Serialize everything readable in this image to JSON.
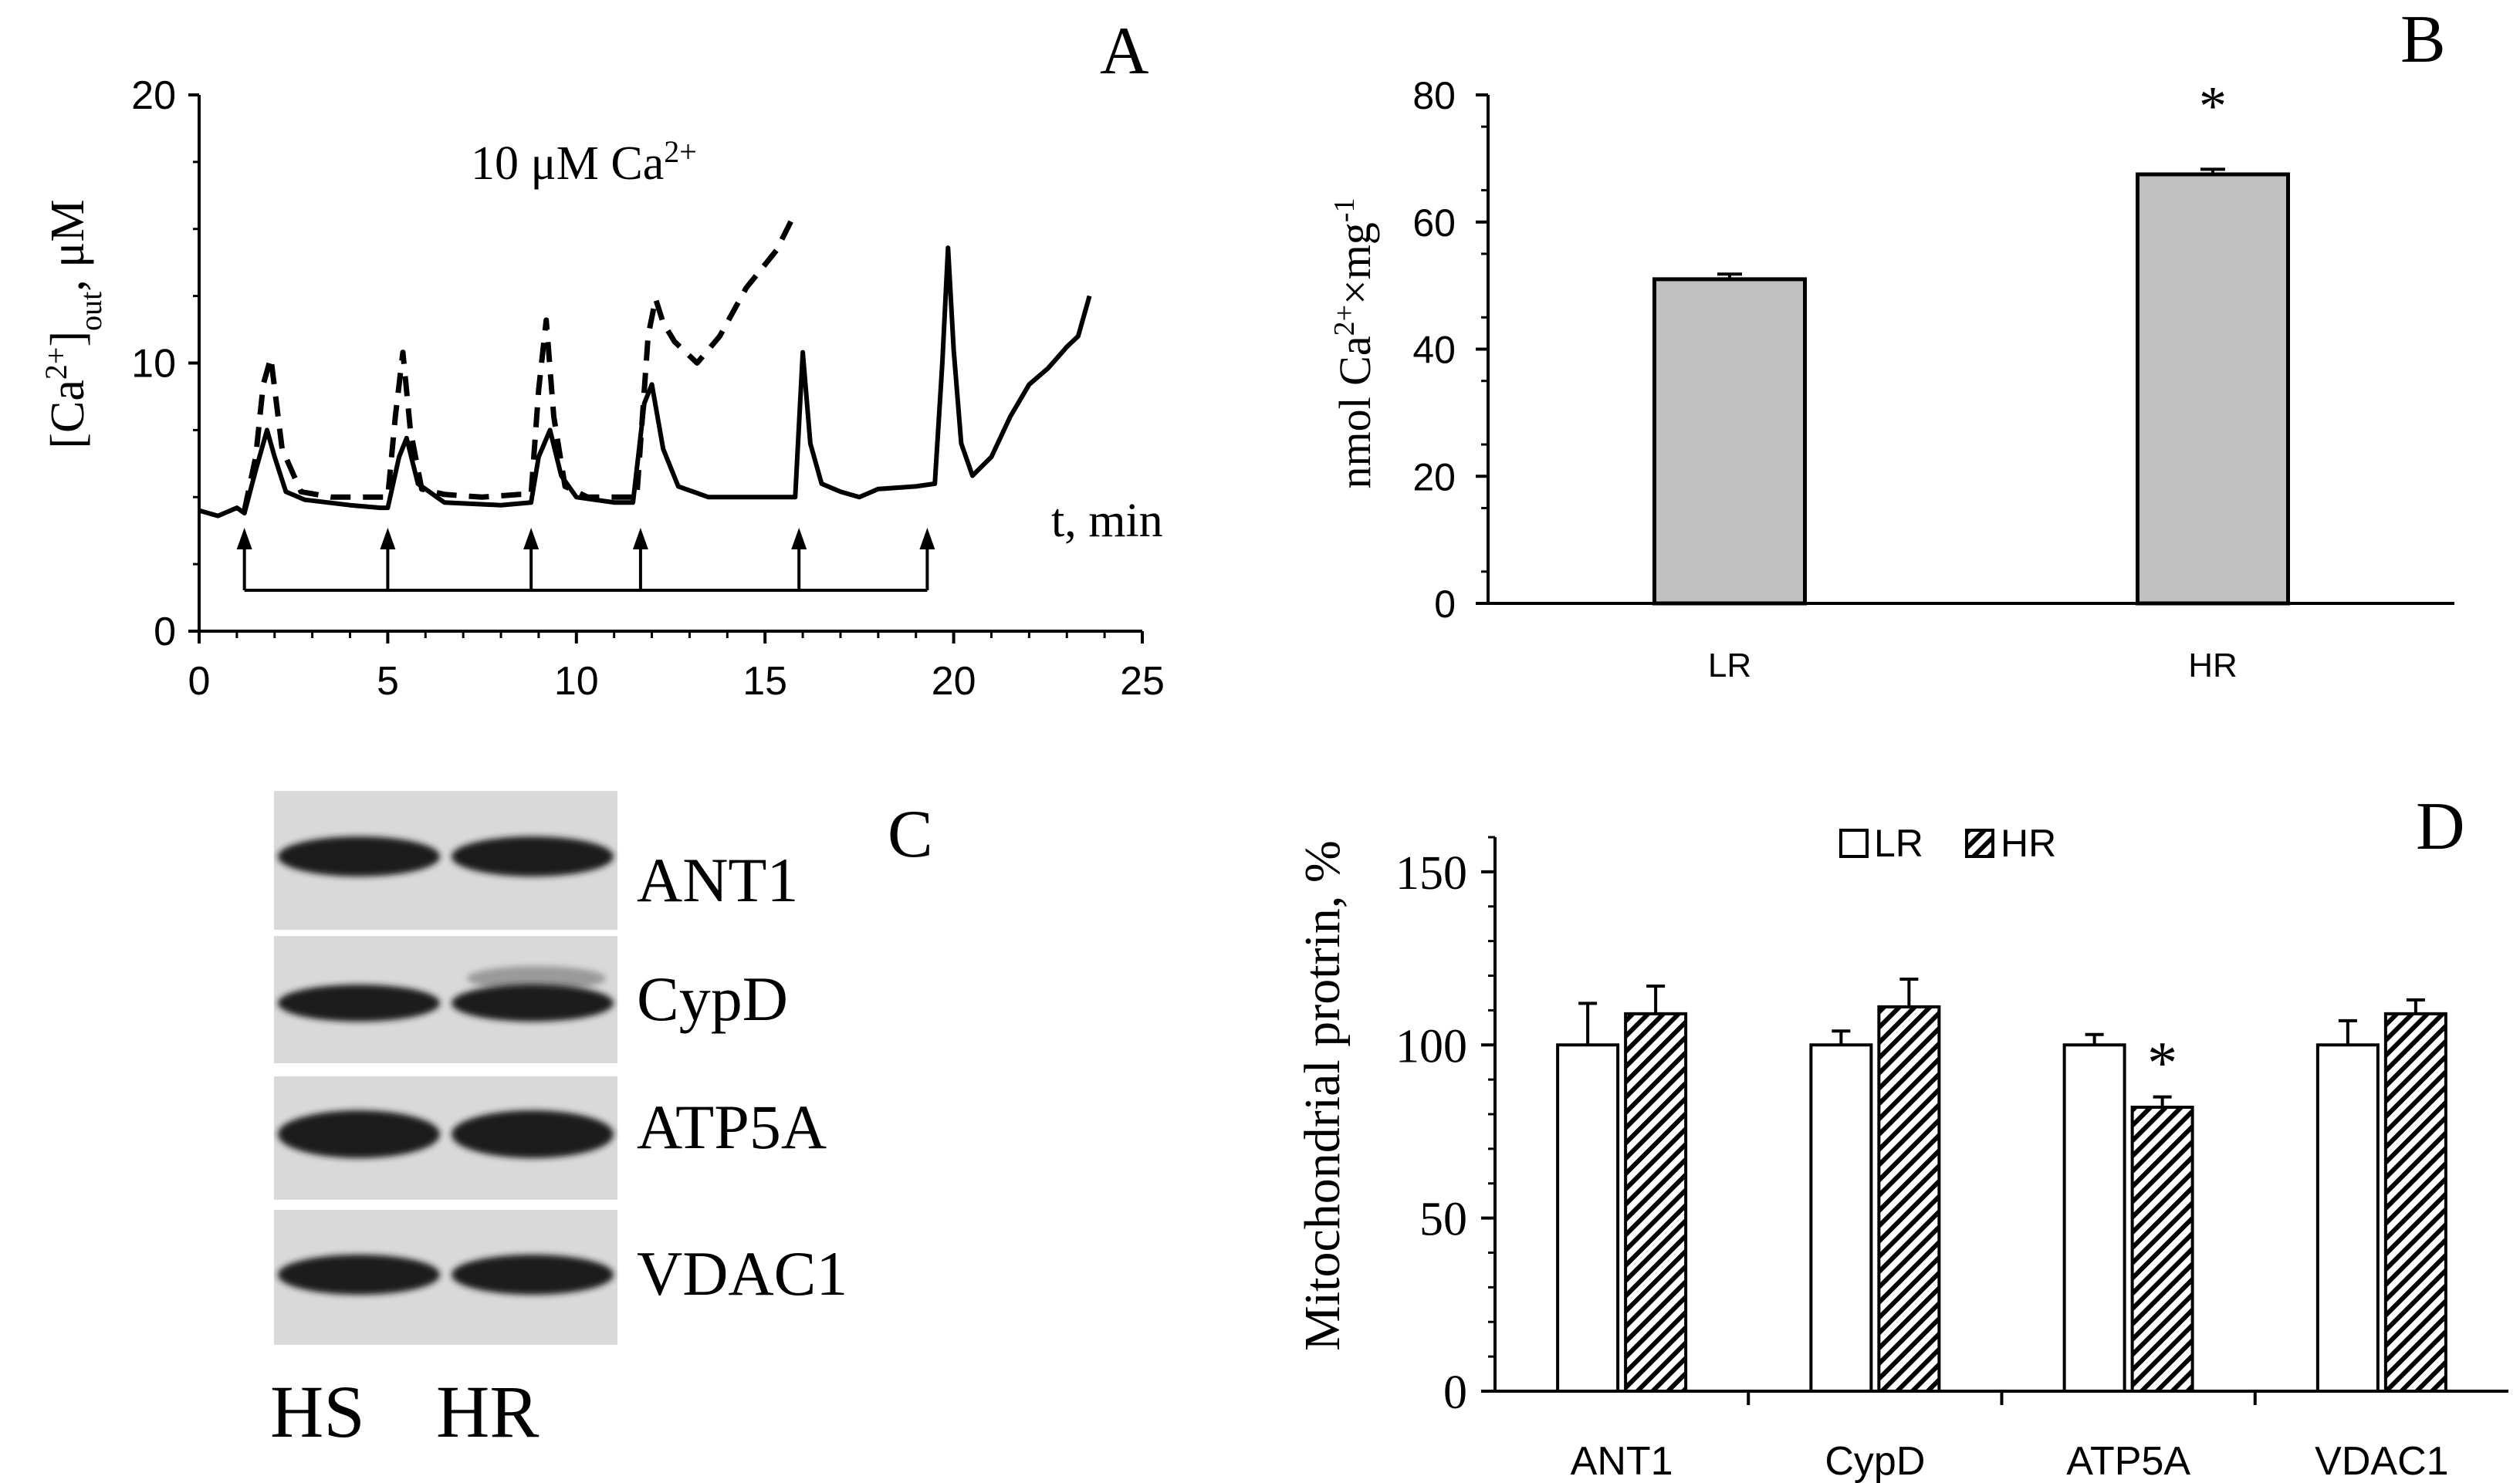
{
  "panels": {
    "A": {
      "letter": "A"
    },
    "B": {
      "letter": "B"
    },
    "C": {
      "letter": "C"
    },
    "D": {
      "letter": "D"
    }
  },
  "colors": {
    "bar_fill": "#c0c0c0",
    "axis": "#000000",
    "band": "#1a1a1a",
    "blot_bg": "#d9d9d9"
  },
  "chart_data": [
    {
      "id": "A",
      "type": "line",
      "ylabel_main": "[Ca",
      "ylabel_sup": "2+",
      "ylabel_close": "]",
      "ylabel_sub": "out",
      "ylabel_unit": ", μM",
      "xlabel": "t, min",
      "annotation_main": "10 μM Ca",
      "annotation_sup": "2+",
      "xlim": [
        0,
        25
      ],
      "ylim": [
        0,
        20
      ],
      "xticks": [
        0,
        5,
        10,
        15,
        20,
        25
      ],
      "yticks": [
        0,
        10,
        20
      ],
      "ca_additions_min": [
        1.2,
        5.0,
        8.8,
        11.7,
        15.9,
        19.3
      ],
      "series": [
        {
          "name": "solid",
          "style": "solid",
          "x": [
            0,
            0.5,
            1,
            1.2,
            1.5,
            1.8,
            2.0,
            2.3,
            2.8,
            4.0,
            4.8,
            5.0,
            5.3,
            5.5,
            5.8,
            6.5,
            8.0,
            8.8,
            9.0,
            9.3,
            9.6,
            10.0,
            11.0,
            11.5,
            11.8,
            12.0,
            12.3,
            12.7,
            13.5,
            15.0,
            15.8,
            16.0,
            16.2,
            16.5,
            17.0,
            17.5,
            18.0,
            19.0,
            19.5,
            19.7,
            19.85,
            20.0,
            20.2,
            20.5,
            21.0,
            21.5,
            22.0,
            22.5,
            23.0,
            23.3,
            23.6
          ],
          "y": [
            4.5,
            4.3,
            4.6,
            4.4,
            6.0,
            7.5,
            6.5,
            5.2,
            4.9,
            4.7,
            4.6,
            4.6,
            6.5,
            7.2,
            5.5,
            4.8,
            4.7,
            4.8,
            6.5,
            7.5,
            5.8,
            5.0,
            4.8,
            4.8,
            8.5,
            9.2,
            6.8,
            5.4,
            5.0,
            5.0,
            5.0,
            10.4,
            7.0,
            5.5,
            5.2,
            5.0,
            5.3,
            5.4,
            5.5,
            10.0,
            14.3,
            10.5,
            7.0,
            5.8,
            6.5,
            8.0,
            9.2,
            9.8,
            10.6,
            11.0,
            12.5
          ]
        },
        {
          "name": "dashed",
          "style": "dashed",
          "x": [
            1.2,
            1.5,
            1.7,
            1.9,
            2.2,
            2.7,
            3.5,
            4.5,
            5.0,
            5.2,
            5.4,
            5.6,
            5.9,
            6.5,
            7.5,
            8.5,
            8.8,
            9.0,
            9.2,
            9.4,
            9.7,
            10.3,
            11.0,
            11.6,
            11.9,
            12.1,
            12.3,
            12.6,
            13.2,
            13.8,
            14.5,
            15.3,
            15.8
          ],
          "y": [
            4.5,
            6.5,
            9.2,
            10.2,
            6.8,
            5.2,
            5.0,
            5.0,
            5.0,
            8.0,
            10.4,
            7.5,
            5.3,
            5.1,
            5.0,
            5.1,
            5.1,
            9.0,
            11.6,
            8.0,
            5.4,
            5.0,
            5.0,
            5.0,
            11.0,
            12.4,
            11.5,
            10.8,
            10.0,
            11.0,
            12.8,
            14.2,
            15.6
          ]
        }
      ]
    },
    {
      "id": "B",
      "type": "bar",
      "ylabel_main": "nmol Ca",
      "ylabel_sup": "2+",
      "ylabel_mid": "×mg",
      "ylabel_sup2": "-1",
      "categories": [
        "LR",
        "HR"
      ],
      "values": [
        51,
        67.5
      ],
      "errors": [
        0.8,
        0.8
      ],
      "significance": [
        "",
        "*"
      ],
      "ylim": [
        0,
        80
      ],
      "yticks": [
        0,
        20,
        40,
        60,
        80
      ]
    },
    {
      "id": "D",
      "type": "bar",
      "ylabel": "Mitochondrial protrin, %",
      "categories": [
        "ANT1",
        "CypD",
        "ATP5A",
        "VDAC1"
      ],
      "series": [
        {
          "name": "LR",
          "fill": "white",
          "values": [
            100,
            100,
            100,
            100
          ],
          "errors": [
            12,
            4,
            3,
            7
          ]
        },
        {
          "name": "HR",
          "fill": "hatched",
          "values": [
            109,
            111,
            82,
            109
          ],
          "errors": [
            8,
            8,
            3,
            4
          ]
        }
      ],
      "significance": [
        [
          "",
          ""
        ],
        [
          "",
          ""
        ],
        [
          "",
          "*"
        ],
        [
          "",
          ""
        ]
      ],
      "ylim": [
        0,
        160
      ],
      "yticks": [
        0,
        50,
        100,
        150
      ],
      "legend_position": "top-center"
    }
  ],
  "blot": {
    "proteins": [
      "ANT1",
      "CypD",
      "ATP5A",
      "VDAC1"
    ],
    "lanes": [
      "HS",
      "HR"
    ]
  }
}
